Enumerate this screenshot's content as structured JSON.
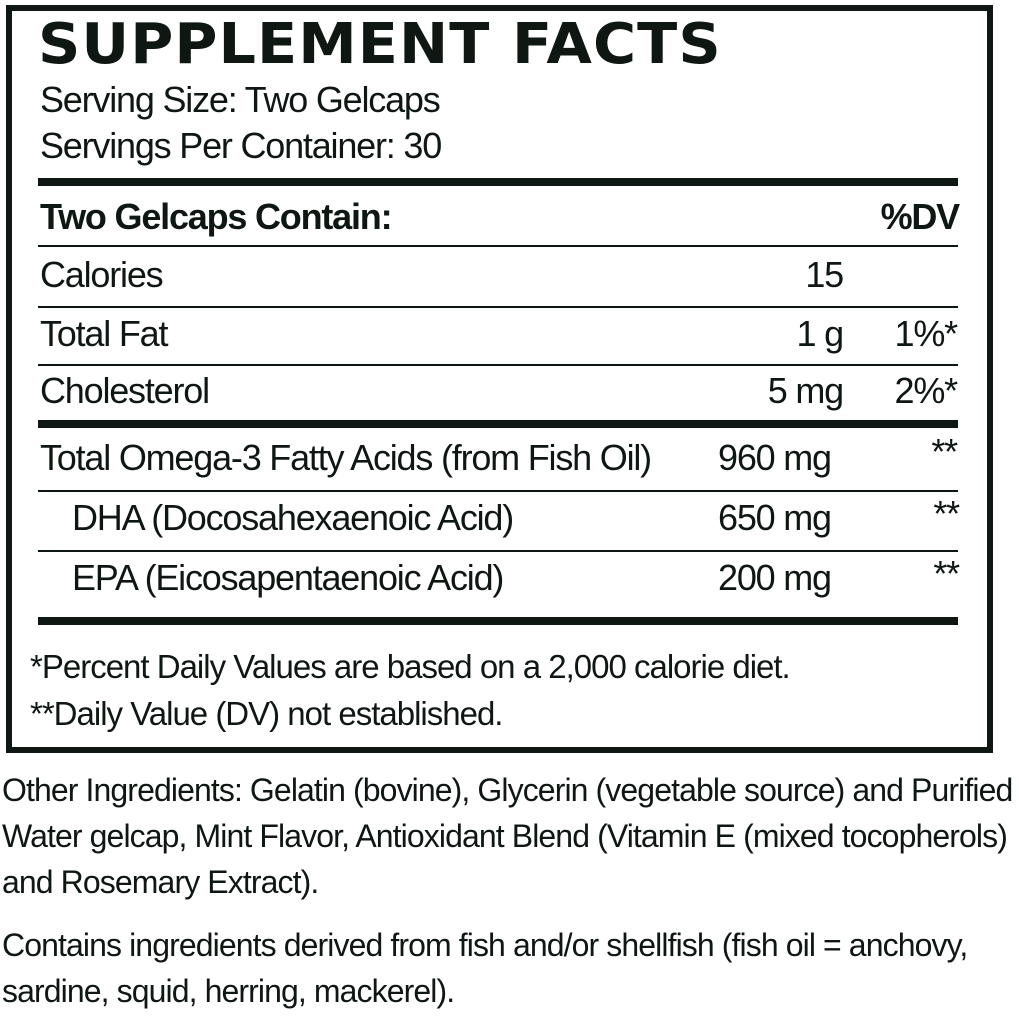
{
  "title": "SUPPLEMENT FACTS",
  "serving_size": "Serving Size: Two Gelcaps",
  "servings_per_container": "Servings Per Container: 30",
  "header": {
    "label": "Two Gelcaps Contain:",
    "dv": "%DV"
  },
  "rows": [
    {
      "name": "Calories",
      "amount": "15",
      "dv": ""
    },
    {
      "name": "Total Fat",
      "amount": "1 g",
      "dv": "1%*"
    },
    {
      "name": "Cholesterol",
      "amount": "5 mg",
      "dv": "2%*"
    },
    {
      "name": "Total Omega-3 Fatty Acids (from Fish Oil)",
      "amount": "960 mg",
      "dv": "**"
    },
    {
      "name": "DHA (Docosahexaenoic Acid)",
      "amount": "650 mg",
      "dv": "**"
    },
    {
      "name": "EPA (Eicosapentaenoic Acid)",
      "amount": "200 mg",
      "dv": "**"
    }
  ],
  "footnotes": [
    "*Percent Daily Values are based on a 2,000 calorie diet.",
    "**Daily Value (DV) not established."
  ],
  "other_ingredients": "Other Ingredients: Gelatin (bovine), Glycerin (vegetable source) and Purified Water gelcap, Mint Flavor, Antioxidant Blend (Vitamin E (mixed tocopherols) and Rosemary Extract).",
  "allergen": "Contains ingredients derived from fish and/or shellfish (fish oil = anchovy, sardine, squid, herring, mackerel)."
}
